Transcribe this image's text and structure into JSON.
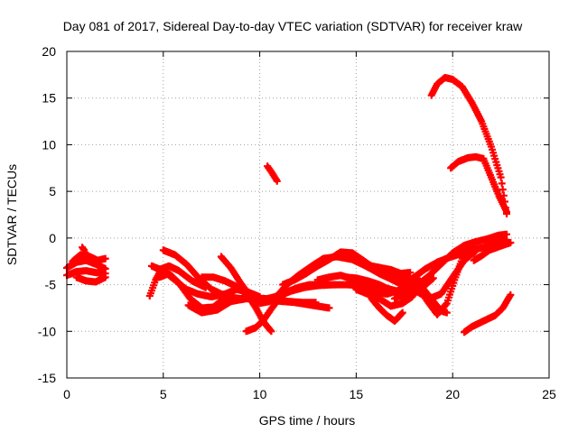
{
  "chart_data": {
    "type": "scatter",
    "title": "Day 081 of 2017, Sidereal Day-to-day VTEC variation (SDTVAR) for receiver kraw",
    "xlabel": "GPS time / hours",
    "ylabel": "SDTVAR / TECUs",
    "xlim": [
      0,
      25
    ],
    "ylim": [
      -15,
      20
    ],
    "x_ticks": [
      0,
      5,
      10,
      15,
      20,
      25
    ],
    "y_ticks": [
      -15,
      -10,
      -5,
      0,
      5,
      10,
      15,
      20
    ],
    "x_tick_labels": [
      "0",
      "5",
      "10",
      "15",
      "20",
      "25"
    ],
    "y_tick_labels": [
      "-15",
      "-10",
      "-5",
      "0",
      "5",
      "10",
      "15",
      "20"
    ],
    "grid": true,
    "legend": "none",
    "marker_color": "#ff0000",
    "series": [
      {
        "x": [
          0.0,
          0.5,
          1.0,
          1.5,
          2.0
        ],
        "y": [
          -3.2,
          -2.6,
          -2.4,
          -2.8,
          -3.3
        ]
      },
      {
        "x": [
          0.0,
          0.5,
          1.0,
          1.5,
          2.0
        ],
        "y": [
          -4.0,
          -3.6,
          -3.5,
          -3.7,
          -3.8
        ]
      },
      {
        "x": [
          0.3,
          0.7,
          1.2,
          1.6,
          2.0
        ],
        "y": [
          -2.5,
          -1.8,
          -2.0,
          -2.4,
          -2.2
        ]
      },
      {
        "x": [
          0.8,
          0.9,
          1.0
        ],
        "y": [
          -1.0,
          -1.3,
          -1.8
        ]
      },
      {
        "x": [
          0.5,
          1.0,
          1.5,
          2.0
        ],
        "y": [
          -4.2,
          -4.6,
          -4.7,
          -4.2
        ]
      },
      {
        "x": [
          4.3,
          4.6,
          4.9,
          5.3,
          5.8,
          6.5,
          7.2
        ],
        "y": [
          -6.2,
          -4.5,
          -3.3,
          -3.0,
          -3.5,
          -4.6,
          -5.3
        ]
      },
      {
        "x": [
          4.4,
          5.0,
          5.6,
          6.2,
          6.8,
          7.5,
          8.2,
          8.8,
          9.4,
          10.0
        ],
        "y": [
          -3.0,
          -3.5,
          -4.5,
          -5.5,
          -6.0,
          -6.3,
          -6.0,
          -5.5,
          -5.8,
          -6.3
        ]
      },
      {
        "x": [
          4.8,
          5.3,
          5.8,
          6.4,
          7.0,
          7.6,
          8.2,
          8.8
        ],
        "y": [
          -4.2,
          -3.8,
          -4.8,
          -6.5,
          -7.5,
          -7.4,
          -6.4,
          -5.4
        ]
      },
      {
        "x": [
          5.0,
          5.6,
          6.2,
          6.8,
          7.5,
          8.3,
          9.0,
          9.7,
          10.3,
          10.8,
          11.5,
          12.2,
          12.9
        ],
        "y": [
          -1.3,
          -1.8,
          -2.8,
          -4.2,
          -5.5,
          -6.3,
          -6.5,
          -6.4,
          -6.5,
          -6.7,
          -6.8,
          -6.9,
          -6.9
        ]
      },
      {
        "x": [
          6.3,
          7.0,
          7.8,
          8.5,
          9.3,
          10.0,
          10.6,
          11.2,
          11.8,
          12.4,
          13.0,
          13.6
        ],
        "y": [
          -7.2,
          -8.0,
          -7.7,
          -6.8,
          -6.5,
          -6.6,
          -6.7,
          -6.8,
          -6.9,
          -7.1,
          -7.3,
          -7.5
        ]
      },
      {
        "x": [
          7.0,
          7.6,
          8.2,
          8.8,
          9.4,
          9.8,
          10.2,
          10.6
        ],
        "y": [
          -4.2,
          -4.2,
          -4.6,
          -5.2,
          -6.2,
          -7.5,
          -9.0,
          -10.0
        ]
      },
      {
        "x": [
          8.0,
          8.5,
          9.0,
          9.5,
          10.0,
          10.5,
          11.0,
          11.3
        ],
        "y": [
          -2.0,
          -3.2,
          -4.8,
          -6.2,
          -7.0,
          -6.8,
          -6.0,
          -5.6
        ]
      },
      {
        "x": [
          9.3,
          9.8,
          10.2,
          10.6,
          11.0,
          11.5,
          12.0,
          12.6,
          13.2,
          13.9
        ],
        "y": [
          -10.0,
          -9.6,
          -8.8,
          -7.6,
          -6.5,
          -5.7,
          -5.3,
          -5.0,
          -5.0,
          -5.0
        ]
      },
      {
        "x": [
          10.4,
          10.6,
          10.9
        ],
        "y": [
          7.7,
          7.1,
          6.1
        ]
      },
      {
        "x": [
          9.8,
          10.4,
          11.0,
          11.6,
          12.3,
          13.0,
          13.8,
          14.5,
          15.2,
          15.9,
          16.6,
          17.3
        ],
        "y": [
          -6.5,
          -6.5,
          -6.2,
          -5.7,
          -5.3,
          -5.1,
          -5.0,
          -5.0,
          -5.1,
          -5.2,
          -5.4,
          -5.8
        ]
      },
      {
        "x": [
          10.8,
          11.4,
          12.0,
          12.7,
          13.3,
          14.0,
          14.8,
          15.5,
          16.2,
          16.9,
          17.4
        ],
        "y": [
          -6.5,
          -5.0,
          -4.0,
          -3.0,
          -2.2,
          -2.0,
          -2.3,
          -3.0,
          -3.8,
          -4.5,
          -5.0
        ]
      },
      {
        "x": [
          11.2,
          11.8,
          12.4,
          13.0,
          13.6,
          14.2,
          14.8,
          15.5,
          16.2,
          16.9,
          17.6,
          18.3
        ],
        "y": [
          -5.0,
          -4.5,
          -3.8,
          -3.0,
          -2.3,
          -1.5,
          -1.6,
          -2.6,
          -3.6,
          -4.2,
          -4.4,
          -4.6
        ]
      },
      {
        "x": [
          13.0,
          13.6,
          14.2,
          14.8,
          15.4,
          16.0,
          16.6,
          17.2,
          17.8,
          18.4
        ],
        "y": [
          -4.5,
          -4.2,
          -4.0,
          -4.4,
          -5.2,
          -5.8,
          -6.0,
          -5.6,
          -5.2,
          -4.7
        ]
      },
      {
        "x": [
          14.5,
          15.0,
          15.6,
          16.2,
          16.8,
          17.4,
          18.0,
          18.6,
          19.0
        ],
        "y": [
          -4.2,
          -4.3,
          -4.6,
          -5.0,
          -5.6,
          -6.4,
          -6.0,
          -5.0,
          -4.3
        ]
      },
      {
        "x": [
          15.0,
          15.6,
          16.2,
          16.8,
          17.4,
          17.9
        ],
        "y": [
          -5.5,
          -6.0,
          -6.5,
          -7.3,
          -7.0,
          -6.3
        ]
      },
      {
        "x": [
          15.8,
          16.2,
          16.6,
          17.0,
          17.4
        ],
        "y": [
          -6.5,
          -7.5,
          -8.3,
          -8.9,
          -8.0
        ]
      },
      {
        "x": [
          15.8,
          16.3,
          16.8,
          17.3,
          17.8
        ],
        "y": [
          -3.0,
          -3.2,
          -3.4,
          -3.8,
          -3.7
        ]
      },
      {
        "x": [
          17.0,
          17.6,
          18.2,
          18.8,
          19.4,
          20.0,
          20.6,
          21.2,
          21.8,
          22.4,
          22.8
        ],
        "y": [
          -6.5,
          -5.8,
          -5.0,
          -4.0,
          -2.8,
          -1.6,
          -0.8,
          -0.4,
          -0.1,
          0.3,
          0.4
        ]
      },
      {
        "x": [
          17.4,
          18.0,
          18.6,
          19.2,
          19.8,
          20.4,
          21.0,
          21.6,
          22.2,
          22.8
        ],
        "y": [
          -5.0,
          -4.2,
          -3.3,
          -2.6,
          -2.1,
          -1.7,
          -1.3,
          -1.0,
          -0.6,
          -0.2
        ]
      },
      {
        "x": [
          17.6,
          18.2,
          18.8,
          19.4,
          20.0,
          20.6,
          21.2
        ],
        "y": [
          -5.2,
          -5.8,
          -6.5,
          -6.0,
          -4.2,
          -2.4,
          -1.4
        ]
      },
      {
        "x": [
          18.3,
          18.7,
          19.2,
          19.7,
          20.1,
          20.5,
          21.0
        ],
        "y": [
          -5.5,
          -6.8,
          -8.2,
          -7.0,
          -4.5,
          -2.2,
          -0.8
        ]
      },
      {
        "x": [
          18.0,
          18.5,
          19.0,
          19.4,
          19.7
        ],
        "y": [
          -4.8,
          -5.5,
          -6.8,
          -7.8,
          -8.0
        ]
      },
      {
        "x": [
          18.9,
          19.2,
          19.6,
          20.0,
          20.5,
          21.0,
          21.5,
          22.0,
          22.5,
          22.8
        ],
        "y": [
          15.3,
          16.5,
          17.2,
          17.0,
          16.2,
          14.5,
          12.5,
          9.8,
          6.5,
          2.6
        ]
      },
      {
        "x": [
          19.9,
          20.3,
          20.8,
          21.2,
          21.6,
          22.0,
          22.4,
          22.8
        ],
        "y": [
          7.5,
          8.2,
          8.6,
          8.7,
          8.5,
          6.5,
          4.5,
          2.8
        ]
      },
      {
        "x": [
          20.6,
          21.0,
          21.4,
          21.8,
          22.2,
          22.6,
          23.0
        ],
        "y": [
          -10.1,
          -9.5,
          -9.1,
          -8.7,
          -8.3,
          -7.5,
          -6.1
        ]
      },
      {
        "x": [
          21.1,
          21.5,
          21.9,
          22.3,
          22.7,
          23.0
        ],
        "y": [
          -2.4,
          -1.9,
          -1.3,
          -1.0,
          -0.7,
          -0.5
        ]
      }
    ]
  }
}
